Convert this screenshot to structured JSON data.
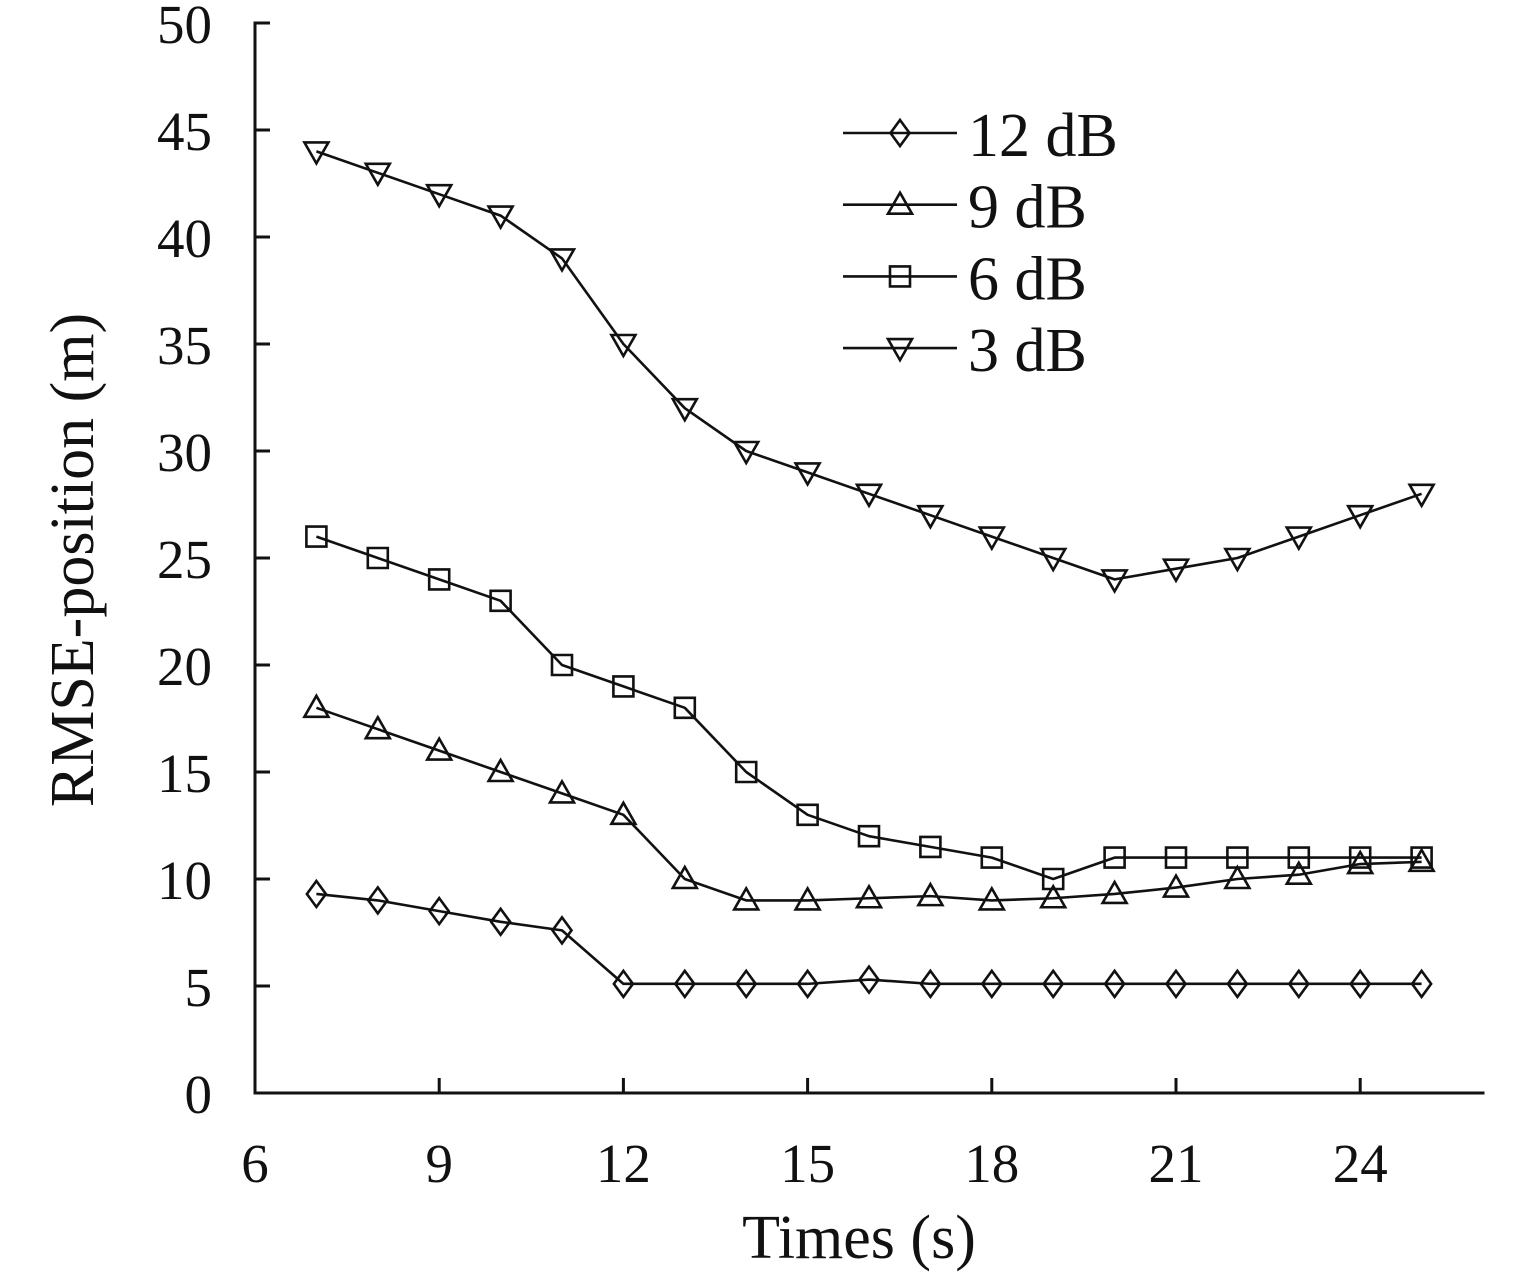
{
  "figure": {
    "background": "#ffffff",
    "ink_color": "#111111"
  },
  "chart_data": {
    "type": "line",
    "title": "",
    "xlabel": "Times (s)",
    "ylabel": "RMSE-position (m)",
    "xlim": [
      6,
      26
    ],
    "ylim": [
      0,
      50
    ],
    "xticks": [
      6,
      9,
      12,
      15,
      18,
      21,
      24
    ],
    "yticks": [
      0,
      5,
      10,
      15,
      20,
      25,
      30,
      35,
      40,
      45,
      50
    ],
    "grid": false,
    "legend": {
      "position": "inside-top-right",
      "order": [
        "12 dB",
        "9 dB",
        "6 dB",
        "3 dB"
      ]
    },
    "x": [
      7,
      8,
      9,
      10,
      11,
      12,
      13,
      14,
      15,
      16,
      17,
      18,
      19,
      20,
      21,
      22,
      23,
      24,
      25
    ],
    "series": [
      {
        "name": "12 dB",
        "marker": "diamond",
        "values": [
          9.3,
          9,
          8.5,
          8,
          7.6,
          5.1,
          5.1,
          5.1,
          5.1,
          5.3,
          5.1,
          5.1,
          5.1,
          5.1,
          5.1,
          5.1,
          5.1,
          5.1,
          5.1
        ]
      },
      {
        "name": "9 dB",
        "marker": "triangle-up",
        "values": [
          18,
          17,
          16,
          15,
          14,
          13,
          10,
          9,
          9,
          9.1,
          9.2,
          9,
          9.1,
          9.3,
          9.6,
          10,
          10.2,
          10.7,
          10.8
        ]
      },
      {
        "name": "6 dB",
        "marker": "square",
        "values": [
          26,
          25,
          24,
          23,
          20,
          19,
          18,
          15,
          13,
          12,
          11.5,
          11,
          10,
          11,
          11,
          11,
          11,
          11,
          11
        ]
      },
      {
        "name": "3 dB",
        "marker": "triangle-down",
        "values": [
          44,
          43,
          42,
          41,
          39,
          35,
          32,
          30,
          29,
          28,
          27,
          26,
          25,
          24,
          24.5,
          25,
          26,
          27,
          28
        ]
      }
    ],
    "line_color": "#111111",
    "marker_fill": "none",
    "background": "#ffffff"
  }
}
